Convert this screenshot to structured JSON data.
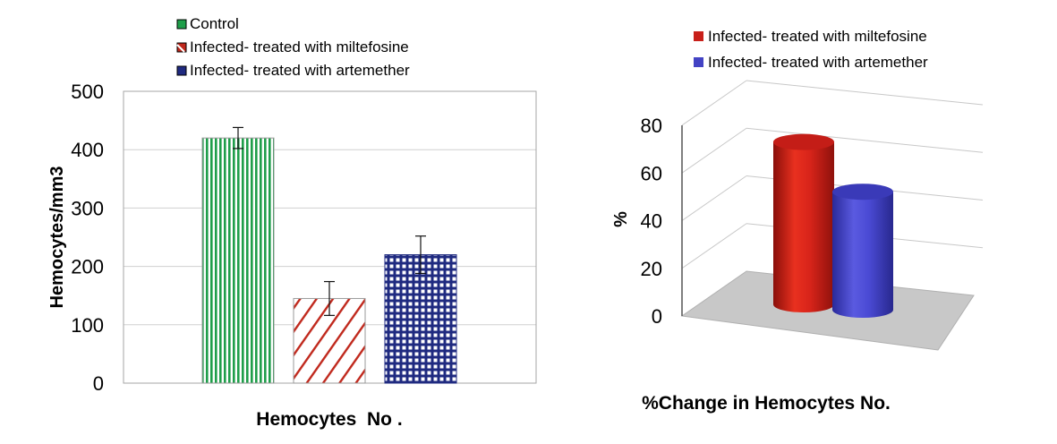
{
  "chart_data": [
    {
      "type": "bar",
      "title": "",
      "xlabel": "Hemocytes  No .",
      "ylabel": "Hemocytes/mm3",
      "ylim": [
        0,
        500
      ],
      "yticks": [
        0,
        100,
        200,
        300,
        400,
        500
      ],
      "grid": true,
      "legend_position": "top",
      "series": [
        {
          "name": "Control",
          "value": 420,
          "error": 18,
          "color": "#1f9e4a",
          "pattern": "vertical-stripes"
        },
        {
          "name": "Infected- treated with miltefosine",
          "value": 145,
          "error": 29,
          "color": "#c0281c",
          "pattern": "diagonal-stripes"
        },
        {
          "name": "Infected- treated with artemether",
          "value": 220,
          "error": 32,
          "color": "#1f2a80",
          "pattern": "checkered"
        }
      ]
    },
    {
      "type": "bar",
      "style": "3d-cylinder",
      "title": "",
      "xlabel": "%Change in Hemocytes No.",
      "ylabel": "%",
      "ylim": [
        0,
        80
      ],
      "yticks": [
        0,
        20,
        40,
        60,
        80
      ],
      "grid": true,
      "legend_position": "top",
      "series": [
        {
          "name": "Infected- treated with miltefosine",
          "value": 65.5,
          "color": "#c8201a"
        },
        {
          "name": "Infected- treated with artemether",
          "value": 47.6,
          "color": "#4343c4"
        }
      ]
    }
  ]
}
